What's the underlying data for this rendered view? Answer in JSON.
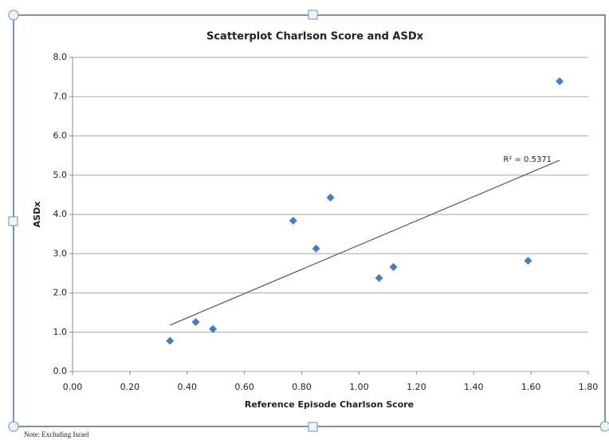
{
  "chart_data": {
    "type": "scatter",
    "title": "Scatterplot Charlson Score and ASDx",
    "x_label": "Reference Episode Charlson Score",
    "y_label": "ASDx",
    "x": [
      0.34,
      0.43,
      0.49,
      0.77,
      0.85,
      0.9,
      1.07,
      1.12,
      1.59,
      1.7
    ],
    "series": [
      {
        "name": "ASDx",
        "color": "#4a7ebb",
        "values": [
          0.78,
          1.26,
          1.08,
          3.84,
          3.13,
          4.43,
          2.38,
          2.66,
          2.82,
          7.39
        ]
      }
    ],
    "trendline": {
      "x": [
        0.34,
        1.7
      ],
      "y": [
        1.18,
        5.38
      ],
      "color": "#555555"
    },
    "annotation": "R² = 0.5371",
    "xlim": [
      0,
      1.8
    ],
    "xticks": [
      {
        "value": 0,
        "label": "0.00"
      },
      {
        "value": 0.2,
        "label": "0.20"
      },
      {
        "value": 0.4,
        "label": "0.40"
      },
      {
        "value": 0.6,
        "label": "0.60"
      },
      {
        "value": 0.8,
        "label": "0.80"
      },
      {
        "value": 1,
        "label": "1.00"
      },
      {
        "value": 1.2,
        "label": "1.20"
      },
      {
        "value": 1.4,
        "label": "1.40"
      },
      {
        "value": 1.6,
        "label": "1.60"
      },
      {
        "value": 1.8,
        "label": "1.80"
      }
    ],
    "ylim": [
      0,
      8
    ],
    "yticks": [
      {
        "value": 0,
        "label": "0.0"
      },
      {
        "value": 1,
        "label": "1.0"
      },
      {
        "value": 2,
        "label": "2.0"
      },
      {
        "value": 3,
        "label": "3.0"
      },
      {
        "value": 4,
        "label": "4.0"
      },
      {
        "value": 5,
        "label": "5.0"
      },
      {
        "value": 6,
        "label": "6.0"
      },
      {
        "value": 7,
        "label": "7.0"
      },
      {
        "value": 8,
        "label": "8.0"
      }
    ],
    "grid": true
  },
  "note": "Note: Excluding Israel"
}
